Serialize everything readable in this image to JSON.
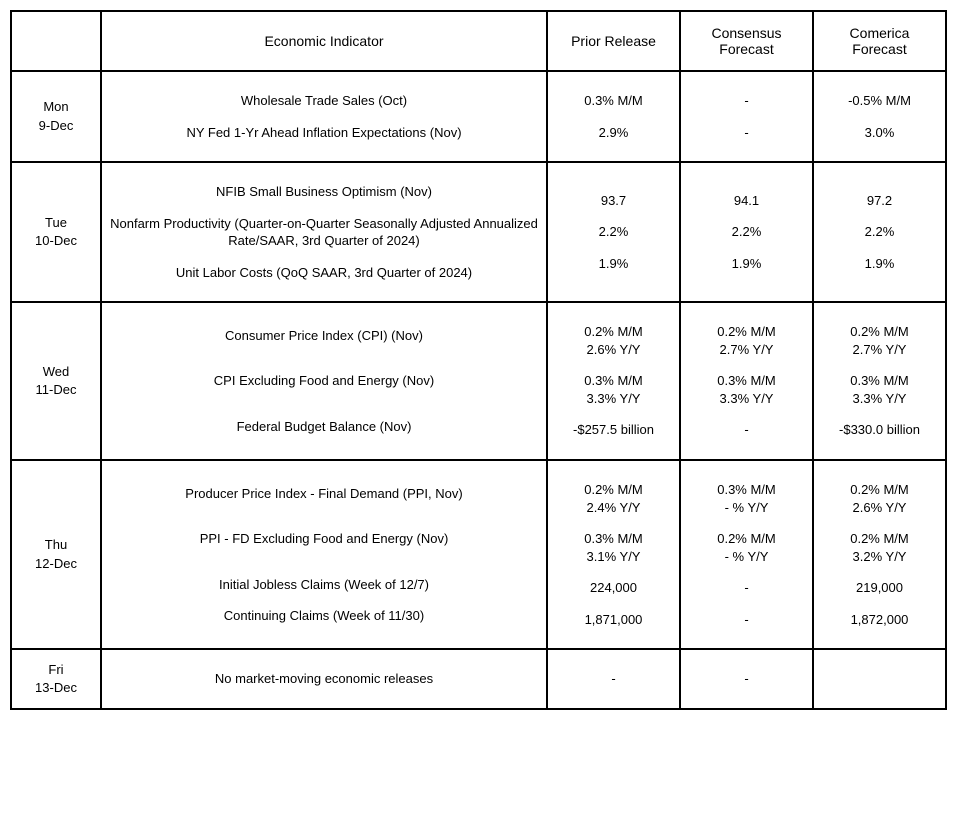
{
  "headers": {
    "date": "",
    "indicator": "Economic Indicator",
    "prior": "Prior Release",
    "consensus": "Consensus Forecast",
    "comerica": "Comerica Forecast"
  },
  "days": [
    {
      "dow": "Mon",
      "date": "9-Dec",
      "indicators": [
        "Wholesale Trade Sales (Oct)",
        "",
        "NY Fed 1-Yr Ahead Inflation Expectations (Nov)"
      ],
      "prior": [
        "0.3% M/M",
        "",
        "2.9%"
      ],
      "consensus": [
        "-",
        "",
        "-"
      ],
      "comerica": [
        "-0.5% M/M",
        "",
        "3.0%"
      ]
    },
    {
      "dow": "Tue",
      "date": "10-Dec",
      "indicators": [
        "NFIB Small Business Optimism (Nov)",
        "",
        "Nonfarm Productivity (Quarter-on-Quarter Seasonally Adjusted Annualized Rate/SAAR,  3rd Quarter of 2024)",
        "",
        "Unit Labor Costs (QoQ SAAR, 3rd Quarter of 2024)"
      ],
      "prior": [
        "93.7",
        "",
        "2.2%",
        "",
        "1.9%"
      ],
      "consensus": [
        "94.1",
        "",
        "2.2%",
        "",
        "1.9%"
      ],
      "comerica": [
        "97.2",
        "",
        "2.2%",
        "",
        "1.9%"
      ]
    },
    {
      "dow": "Wed",
      "date": "11-Dec",
      "indicators": [
        "Consumer Price Index (CPI) (Nov)",
        "",
        "",
        "CPI Excluding Food and Energy (Nov)",
        "",
        "",
        "Federal Budget Balance (Nov)"
      ],
      "prior": [
        "0.2% M/M",
        "2.6% Y/Y",
        "",
        "0.3% M/M",
        "3.3% Y/Y",
        "",
        "-$257.5 billion"
      ],
      "consensus": [
        "0.2% M/M",
        "2.7% Y/Y",
        "",
        "0.3% M/M",
        "3.3% Y/Y",
        "",
        "-"
      ],
      "comerica": [
        "0.2% M/M",
        "2.7% Y/Y",
        "",
        "0.3% M/M",
        "3.3% Y/Y",
        "",
        "-$330.0 billion"
      ]
    },
    {
      "dow": "Thu",
      "date": "12-Dec",
      "indicators": [
        "Producer Price Index - Final Demand (PPI, Nov)",
        "",
        "",
        "PPI - FD Excluding Food and Energy (Nov)",
        "",
        "",
        "Initial Jobless Claims (Week of 12/7)",
        "",
        "Continuing Claims (Week of 11/30)"
      ],
      "prior": [
        "0.2% M/M",
        "2.4% Y/Y",
        "",
        "0.3% M/M",
        "3.1% Y/Y",
        "",
        "224,000",
        "",
        "1,871,000"
      ],
      "consensus": [
        "0.3% M/M",
        "- % Y/Y",
        "",
        "0.2% M/M",
        "- % Y/Y",
        "",
        "-",
        "",
        "-"
      ],
      "comerica": [
        "0.2% M/M",
        "2.6% Y/Y",
        "",
        "0.2% M/M",
        "3.2% Y/Y",
        "",
        "219,000",
        "",
        "1,872,000"
      ]
    },
    {
      "dow": "Fri",
      "date": "13-Dec",
      "indicators": [
        "No market-moving economic releases"
      ],
      "prior": [
        "-"
      ],
      "consensus": [
        "-"
      ],
      "comerica": [
        ""
      ]
    }
  ]
}
